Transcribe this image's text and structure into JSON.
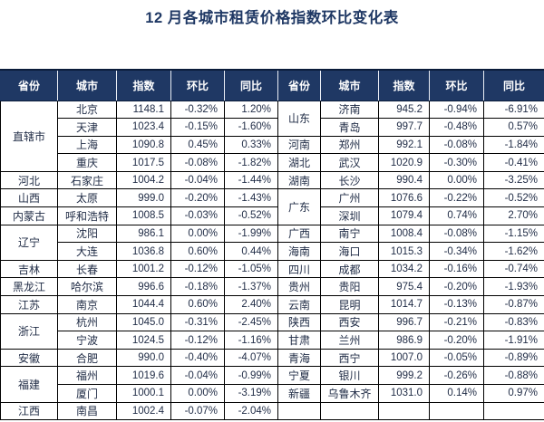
{
  "title": "12 月各城市租赁价格指数环比变化表",
  "colors": {
    "header_bg": "#1F3864",
    "title_text": "#1F3864",
    "body_text": "#1F2B45",
    "border": "#000000"
  },
  "chart_data": {
    "type": "table",
    "title": "12 月各城市租赁价格指数环比变化表",
    "headers": [
      "省份",
      "城市",
      "指数",
      "环比",
      "同比"
    ],
    "left_groups": [
      {
        "province": "直辖市",
        "cities": [
          {
            "name": "北京",
            "index": "1148.1",
            "mom": "-0.32%",
            "yoy": "1.20%"
          },
          {
            "name": "天津",
            "index": "1023.4",
            "mom": "-0.15%",
            "yoy": "-1.60%"
          },
          {
            "name": "上海",
            "index": "1090.8",
            "mom": "0.45%",
            "yoy": "0.33%"
          },
          {
            "name": "重庆",
            "index": "1017.5",
            "mom": "-0.08%",
            "yoy": "-1.82%"
          }
        ]
      },
      {
        "province": "河北",
        "cities": [
          {
            "name": "石家庄",
            "index": "1004.2",
            "mom": "-0.04%",
            "yoy": "-1.44%"
          }
        ]
      },
      {
        "province": "山西",
        "cities": [
          {
            "name": "太原",
            "index": "999.0",
            "mom": "-0.20%",
            "yoy": "-1.43%"
          }
        ]
      },
      {
        "province": "内蒙古",
        "cities": [
          {
            "name": "呼和浩特",
            "index": "1008.5",
            "mom": "-0.03%",
            "yoy": "-0.52%"
          }
        ]
      },
      {
        "province": "辽宁",
        "cities": [
          {
            "name": "沈阳",
            "index": "986.1",
            "mom": "0.00%",
            "yoy": "-1.99%"
          },
          {
            "name": "大连",
            "index": "1036.8",
            "mom": "0.60%",
            "yoy": "0.44%"
          }
        ]
      },
      {
        "province": "吉林",
        "cities": [
          {
            "name": "长春",
            "index": "1001.2",
            "mom": "-0.12%",
            "yoy": "-1.05%"
          }
        ]
      },
      {
        "province": "黑龙江",
        "cities": [
          {
            "name": "哈尔滨",
            "index": "996.6",
            "mom": "-0.18%",
            "yoy": "-1.37%"
          }
        ]
      },
      {
        "province": "江苏",
        "cities": [
          {
            "name": "南京",
            "index": "1044.4",
            "mom": "0.60%",
            "yoy": "2.40%"
          }
        ]
      },
      {
        "province": "浙江",
        "cities": [
          {
            "name": "杭州",
            "index": "1045.0",
            "mom": "-0.31%",
            "yoy": "-2.45%"
          },
          {
            "name": "宁波",
            "index": "1024.5",
            "mom": "-0.12%",
            "yoy": "-1.16%"
          }
        ]
      },
      {
        "province": "安徽",
        "cities": [
          {
            "name": "合肥",
            "index": "990.0",
            "mom": "-0.40%",
            "yoy": "-4.07%"
          }
        ]
      },
      {
        "province": "福建",
        "cities": [
          {
            "name": "福州",
            "index": "1019.6",
            "mom": "-0.04%",
            "yoy": "-0.99%"
          },
          {
            "name": "厦门",
            "index": "1000.1",
            "mom": "0.00%",
            "yoy": "-3.19%"
          }
        ]
      },
      {
        "province": "江西",
        "cities": [
          {
            "name": "南昌",
            "index": "1002.4",
            "mom": "-0.07%",
            "yoy": "-2.04%"
          }
        ]
      }
    ],
    "right_groups": [
      {
        "province": "山东",
        "cities": [
          {
            "name": "济南",
            "index": "945.2",
            "mom": "-0.94%",
            "yoy": "-6.91%"
          },
          {
            "name": "青岛",
            "index": "997.7",
            "mom": "-0.48%",
            "yoy": "0.57%"
          }
        ]
      },
      {
        "province": "河南",
        "cities": [
          {
            "name": "郑州",
            "index": "992.1",
            "mom": "-0.08%",
            "yoy": "-1.84%"
          }
        ]
      },
      {
        "province": "湖北",
        "cities": [
          {
            "name": "武汉",
            "index": "1020.9",
            "mom": "-0.30%",
            "yoy": "-0.41%"
          }
        ]
      },
      {
        "province": "湖南",
        "cities": [
          {
            "name": "长沙",
            "index": "990.4",
            "mom": "0.00%",
            "yoy": "-3.25%"
          }
        ]
      },
      {
        "province": "广东",
        "cities": [
          {
            "name": "广州",
            "index": "1076.6",
            "mom": "-0.22%",
            "yoy": "-0.52%"
          },
          {
            "name": "深圳",
            "index": "1079.4",
            "mom": "0.74%",
            "yoy": "2.70%"
          }
        ]
      },
      {
        "province": "广西",
        "cities": [
          {
            "name": "南宁",
            "index": "1008.4",
            "mom": "-0.08%",
            "yoy": "-1.15%"
          }
        ]
      },
      {
        "province": "海南",
        "cities": [
          {
            "name": "海口",
            "index": "1015.3",
            "mom": "-0.34%",
            "yoy": "-1.62%"
          }
        ]
      },
      {
        "province": "四川",
        "cities": [
          {
            "name": "成都",
            "index": "1034.2",
            "mom": "-0.16%",
            "yoy": "-0.74%"
          }
        ]
      },
      {
        "province": "贵州",
        "cities": [
          {
            "name": "贵阳",
            "index": "975.4",
            "mom": "-0.20%",
            "yoy": "-1.93%"
          }
        ]
      },
      {
        "province": "云南",
        "cities": [
          {
            "name": "昆明",
            "index": "1014.7",
            "mom": "-0.13%",
            "yoy": "-0.87%"
          }
        ]
      },
      {
        "province": "陕西",
        "cities": [
          {
            "name": "西安",
            "index": "996.7",
            "mom": "-0.21%",
            "yoy": "-0.83%"
          }
        ]
      },
      {
        "province": "甘肃",
        "cities": [
          {
            "name": "兰州",
            "index": "986.9",
            "mom": "-0.20%",
            "yoy": "-1.91%"
          }
        ]
      },
      {
        "province": "青海",
        "cities": [
          {
            "name": "西宁",
            "index": "1007.0",
            "mom": "-0.05%",
            "yoy": "-0.89%"
          }
        ]
      },
      {
        "province": "宁夏",
        "cities": [
          {
            "name": "银川",
            "index": "999.2",
            "mom": "-0.26%",
            "yoy": "-0.88%"
          }
        ]
      },
      {
        "province": "新疆",
        "cities": [
          {
            "name": "乌鲁木齐",
            "index": "1031.0",
            "mom": "0.14%",
            "yoy": "0.97%"
          }
        ]
      },
      {
        "province": "",
        "cities": [
          {
            "name": "",
            "index": "",
            "mom": "",
            "yoy": ""
          }
        ]
      }
    ]
  }
}
